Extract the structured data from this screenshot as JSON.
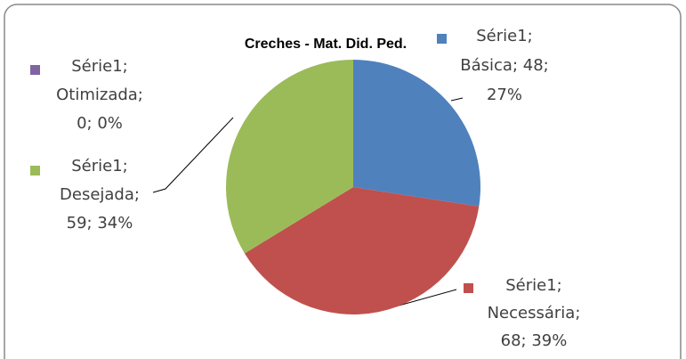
{
  "chart_data": {
    "type": "pie",
    "title": "Creches - Mat. Did. Ped.",
    "categories": [
      "Básica",
      "Necessária",
      "Desejada",
      "Otimizada"
    ],
    "values": [
      48,
      68,
      59,
      0
    ],
    "value_labels": [
      [
        "Série1;",
        "Básica; 48;",
        "27%"
      ],
      [
        "Série1;",
        "Necessária;",
        "68; 39%"
      ],
      [
        "Série1;",
        "Desejada;",
        "59; 34%"
      ],
      [
        "Série1;",
        "Otimizada;",
        "0; 0%"
      ]
    ],
    "colors": [
      "#4f81bd",
      "#c0504d",
      "#9bbb59",
      "#8064a2"
    ]
  }
}
